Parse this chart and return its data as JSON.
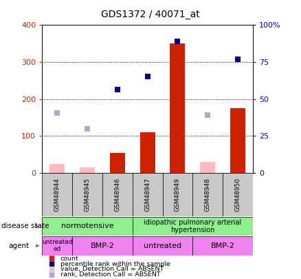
{
  "title": "GDS1372 / 40071_at",
  "samples": [
    "GSM48944",
    "GSM48945",
    "GSM48946",
    "GSM48947",
    "GSM48949",
    "GSM48948",
    "GSM48950"
  ],
  "bar_values": [
    25,
    15,
    55,
    110,
    350,
    30,
    175
  ],
  "absent_bars": [
    0,
    1,
    5
  ],
  "rank_present": [
    null,
    null,
    225,
    262,
    356,
    null,
    308
  ],
  "rank_absent": [
    163,
    120,
    null,
    null,
    null,
    157,
    null
  ],
  "ylim_left": [
    0,
    400
  ],
  "ylim_right": [
    0,
    100
  ],
  "yticks_left": [
    0,
    100,
    200,
    300,
    400
  ],
  "yticks_right": [
    0,
    25,
    50,
    75,
    100
  ],
  "ytick_labels_right": [
    "0",
    "25",
    "50",
    "75",
    "100%"
  ],
  "grid_lines": [
    100,
    200,
    300
  ],
  "bar_width": 0.5,
  "color_present_bar": "#cc2200",
  "color_absent_bar": "#ffbbbb",
  "color_rank_present": "#00008b",
  "color_rank_absent": "#aaaacc",
  "left_tick_color": "#cc2200",
  "right_tick_color": "#0000cc",
  "sample_box_color": "#c8c8c8",
  "ds_color": "#90ee90",
  "agent_color": "#ee82ee",
  "legend_colors": [
    "#cc2200",
    "#00008b",
    "#ffbbbb",
    "#aaaacc"
  ],
  "legend_labels": [
    "count",
    "percentile rank within the sample",
    "value, Detection Call = ABSENT",
    "rank, Detection Call = ABSENT"
  ]
}
